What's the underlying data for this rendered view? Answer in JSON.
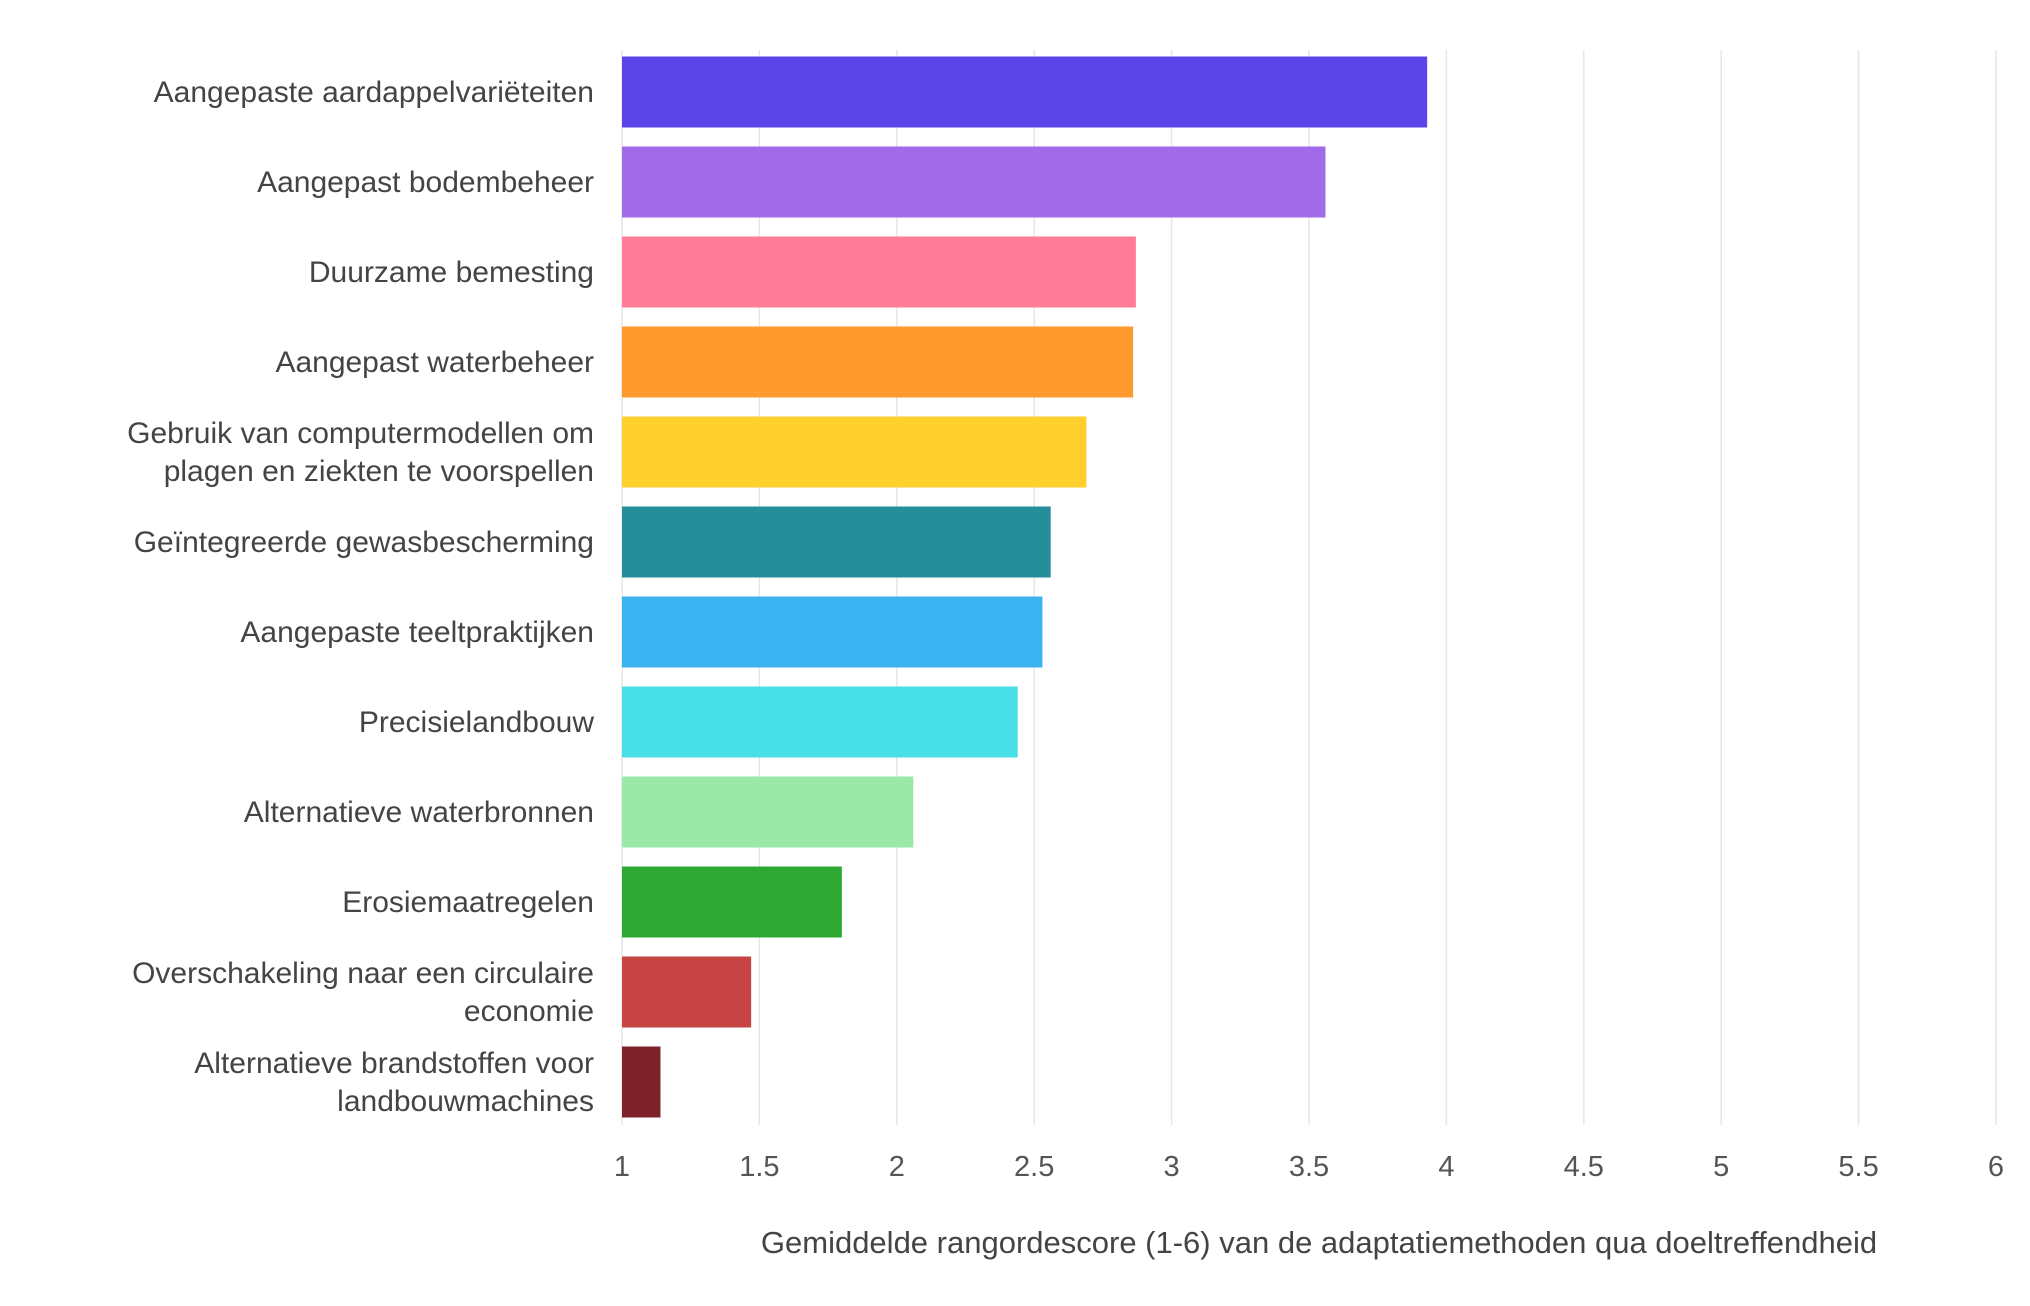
{
  "chart_data": {
    "type": "bar",
    "orientation": "horizontal",
    "categories": [
      [
        "Aangepaste aardappelvariëteiten"
      ],
      [
        "Aangepast bodembeheer"
      ],
      [
        "Duurzame bemesting"
      ],
      [
        "Aangepast waterbeheer"
      ],
      [
        "Gebruik van computermodellen om",
        "plagen en ziekten te voorspellen"
      ],
      [
        "Geïntegreerde gewasbescherming"
      ],
      [
        "Aangepaste teeltpraktijken"
      ],
      [
        "Precisielandbouw"
      ],
      [
        "Alternatieve waterbronnen"
      ],
      [
        "Erosiemaatregelen"
      ],
      [
        "Overschakeling naar een circulaire",
        "economie"
      ],
      [
        "Alternatieve brandstoffen voor",
        "landbouwmachines"
      ]
    ],
    "values": [
      3.93,
      3.56,
      2.87,
      2.86,
      2.69,
      2.56,
      2.53,
      2.44,
      2.06,
      1.8,
      1.47,
      1.14
    ],
    "colors": [
      "#5b45e8",
      "#a06ae8",
      "#ff7b97",
      "#ff9a2e",
      "#ffcf2e",
      "#258e9b",
      "#3ab3f0",
      "#48e0e8",
      "#9be9a8",
      "#2ca833",
      "#c74444",
      "#7f2128"
    ],
    "xlim": [
      1,
      6
    ],
    "xticks": [
      "1",
      "1.5",
      "2",
      "2.5",
      "3",
      "3.5",
      "4",
      "4.5",
      "5",
      "5.5",
      "6"
    ],
    "xlabel": "Gemiddelde rangordescore (1-6) van de adaptatiemethoden qua doeltreffendheid",
    "ylabel": "",
    "title": "",
    "grid": "vertical"
  }
}
